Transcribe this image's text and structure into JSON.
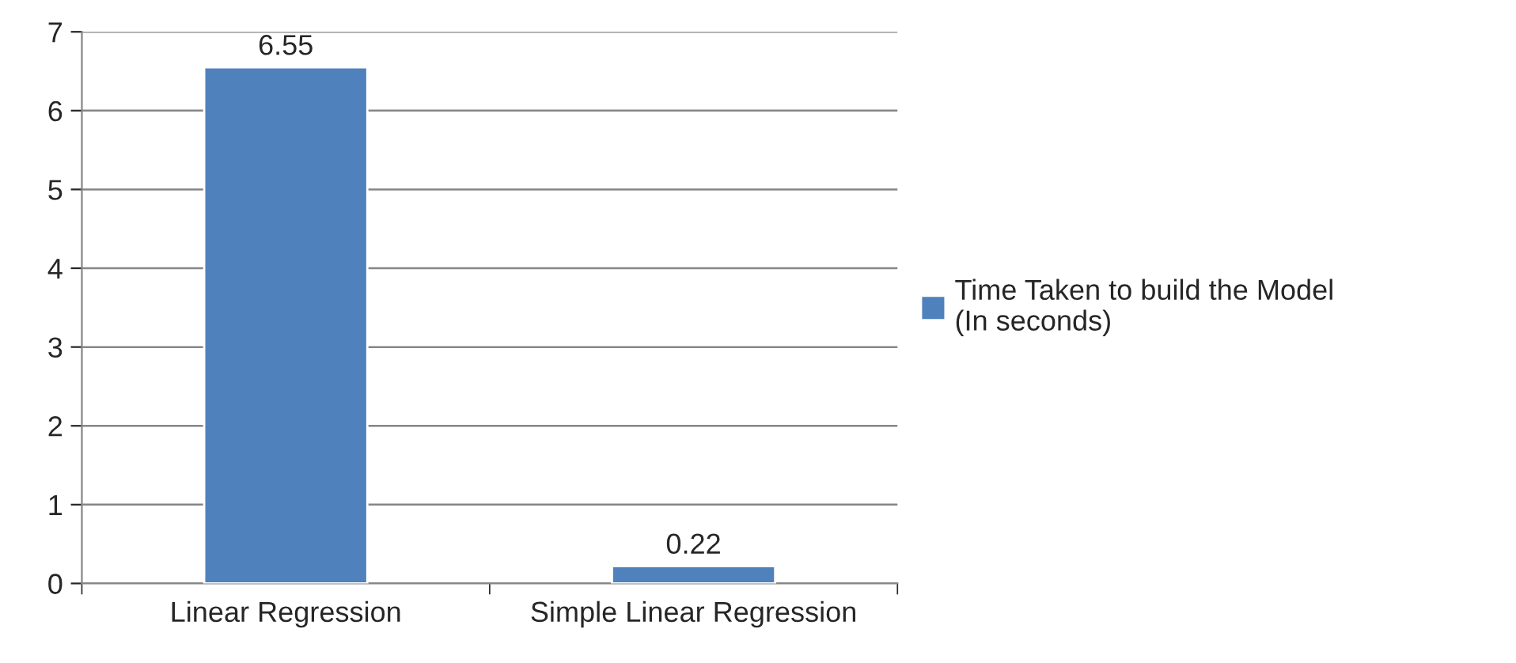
{
  "chart_data": {
    "type": "bar",
    "categories": [
      "Linear Regression",
      "Simple Linear Regression"
    ],
    "series": [
      {
        "name": "Time Taken to build the Model\n(In seconds)",
        "color": "#4f81bd",
        "values": [
          6.55,
          0.22
        ]
      }
    ],
    "ylim": [
      0,
      7
    ],
    "yticks": [
      0,
      1,
      2,
      3,
      4,
      5,
      6,
      7
    ],
    "grid": "y",
    "legend": "right",
    "data_labels": true
  }
}
